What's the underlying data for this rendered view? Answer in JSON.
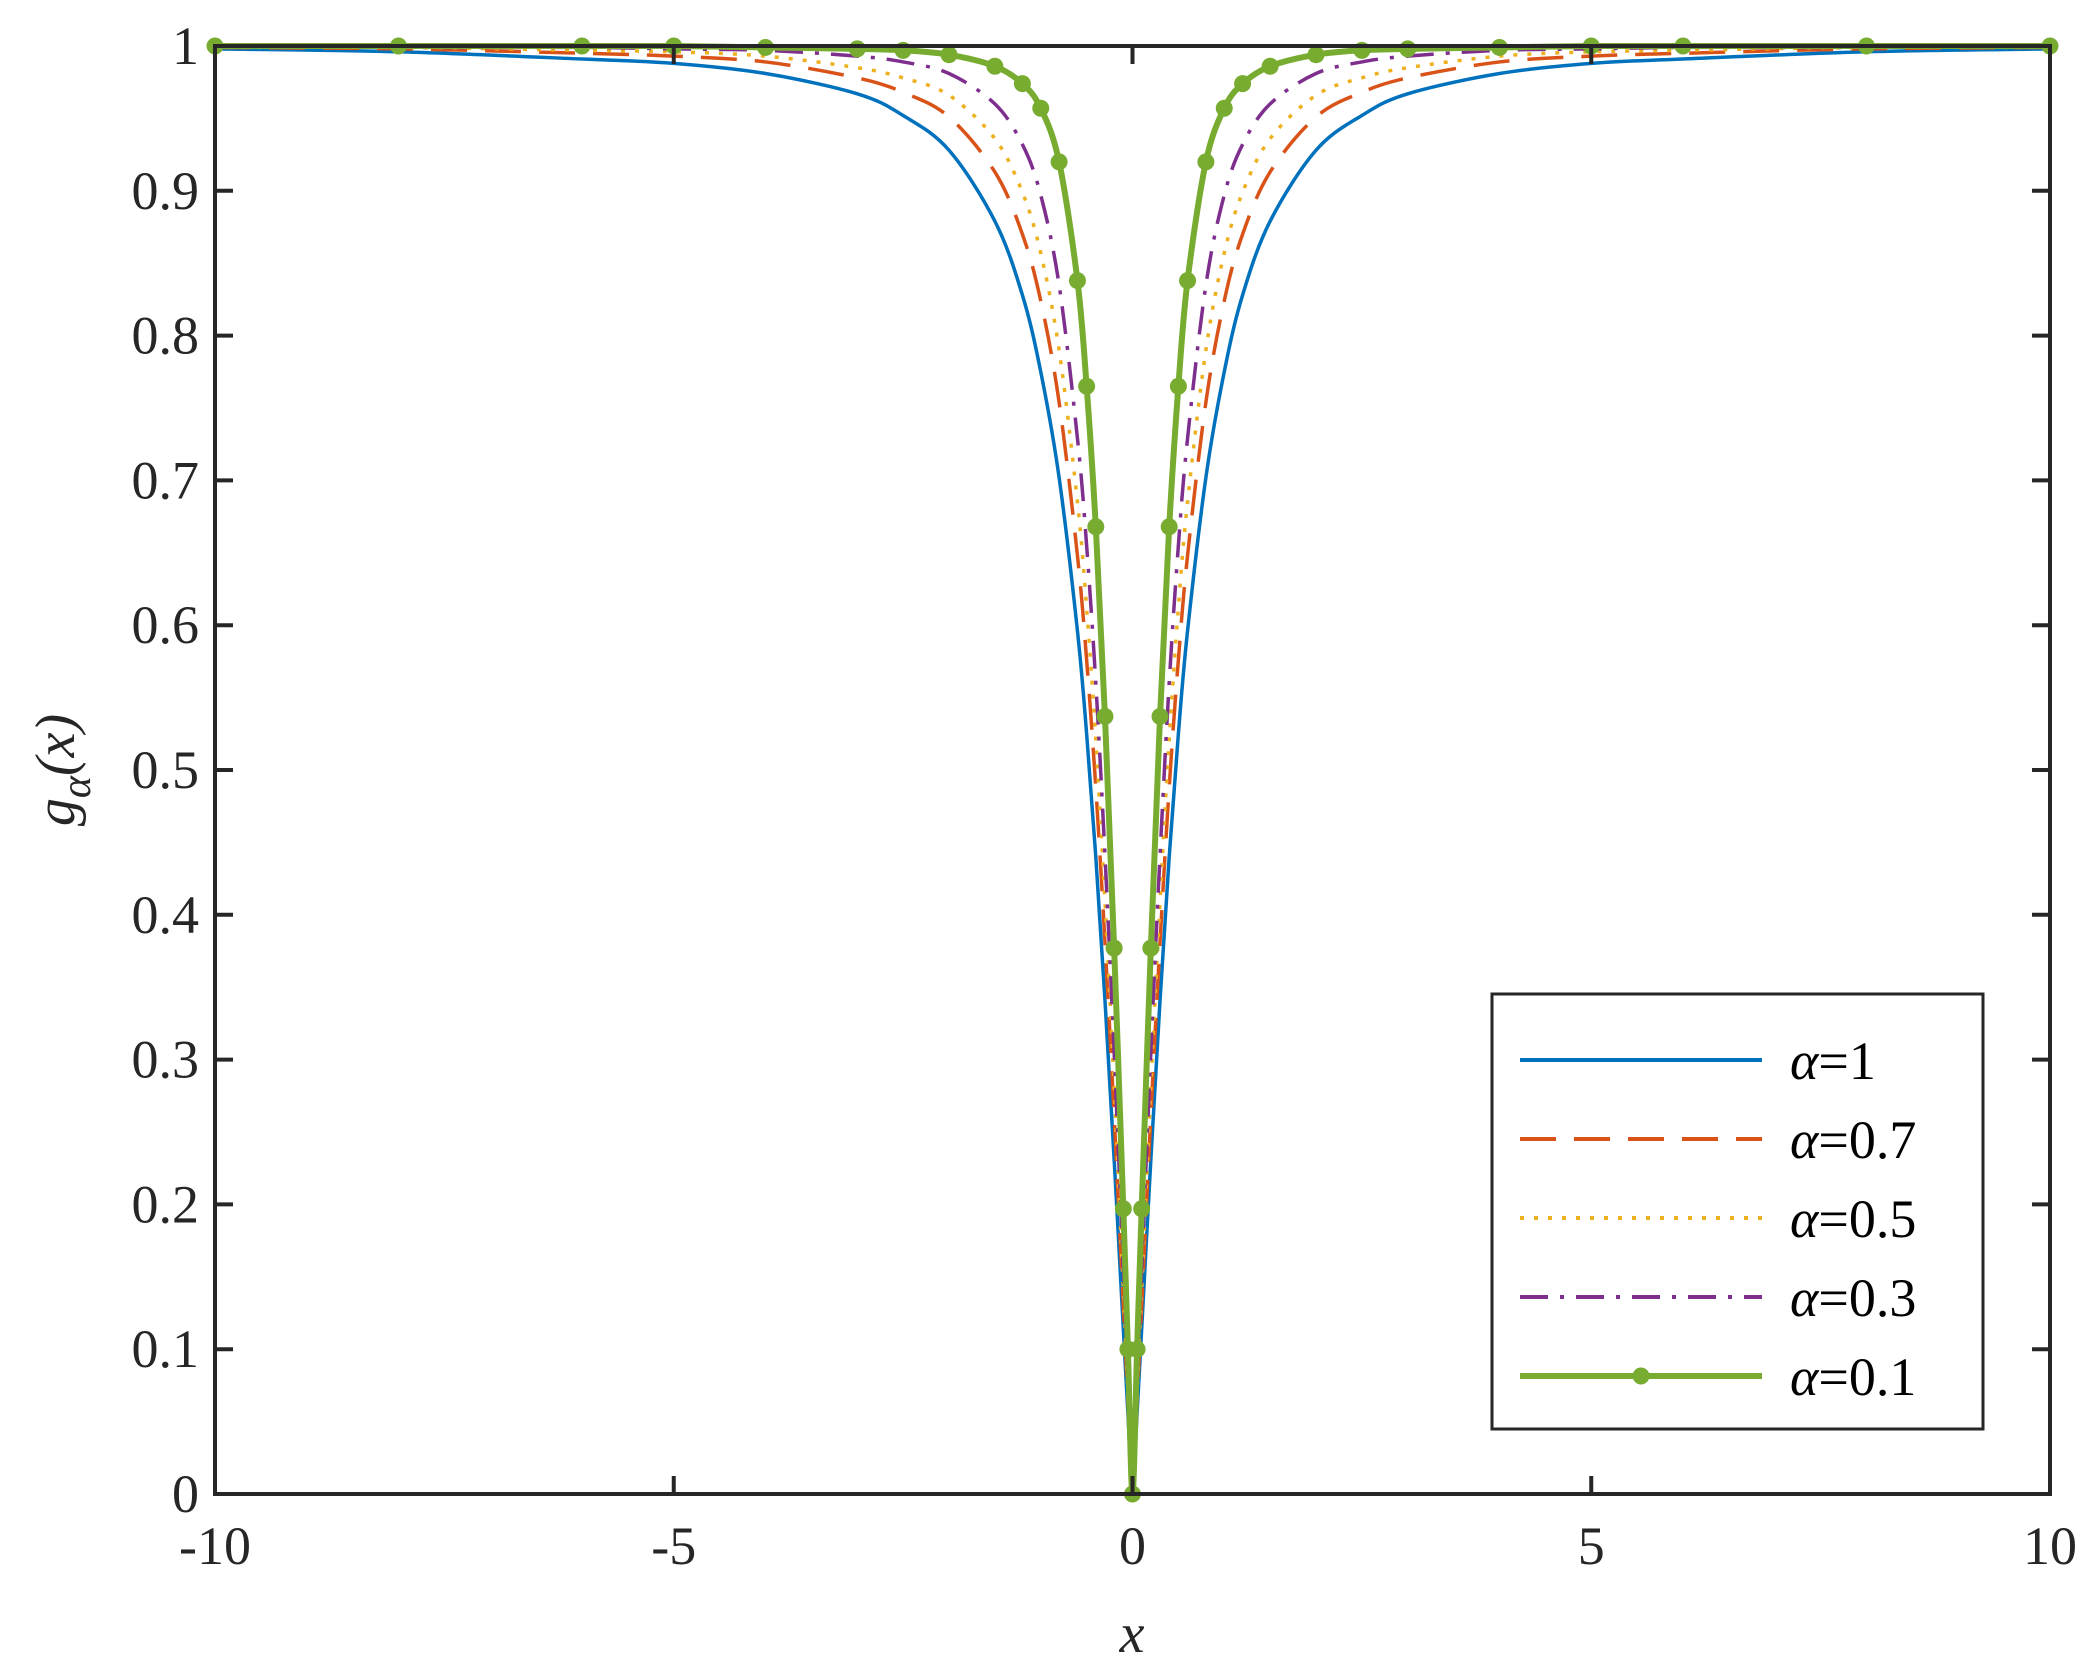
{
  "chart_data": {
    "type": "line",
    "title": "",
    "xlabel": "x",
    "ylabel": {
      "base": "g",
      "sub": "α",
      "arg": "(x)"
    },
    "xlim": [
      -10,
      10
    ],
    "ylim": [
      0,
      1
    ],
    "xticks": [
      -10,
      -5,
      0,
      5,
      10
    ],
    "xtick_labels": [
      "-10",
      "-5",
      "0",
      "5",
      "10"
    ],
    "yticks": [
      0,
      0.1,
      0.2,
      0.3,
      0.4,
      0.5,
      0.6,
      0.7,
      0.8,
      0.9,
      1
    ],
    "ytick_labels": [
      "0",
      "0.1",
      "0.2",
      "0.3",
      "0.4",
      "0.5",
      "0.6",
      "0.7",
      "0.8",
      "0.9",
      "1"
    ],
    "grid": false,
    "legend_position": "bottom-right",
    "x": [
      -10,
      -8,
      -6,
      -5,
      -4,
      -3,
      -2.5,
      -2,
      -1.5,
      -1.2,
      -1,
      -0.8,
      -0.6,
      -0.5,
      -0.4,
      -0.3,
      -0.2,
      -0.1,
      -0.05,
      0,
      0.05,
      0.1,
      0.2,
      0.3,
      0.4,
      0.5,
      0.6,
      0.8,
      1,
      1.2,
      1.5,
      2,
      2.5,
      3,
      4,
      5,
      6,
      8,
      10
    ],
    "series": [
      {
        "name": "α=1",
        "color": "#0072BD",
        "style": "solid",
        "values": [
          0.998,
          0.996,
          0.991,
          0.988,
          0.981,
          0.967,
          0.952,
          0.928,
          0.879,
          0.828,
          0.775,
          0.702,
          0.596,
          0.525,
          0.44,
          0.341,
          0.231,
          0.114,
          0.056,
          0,
          0.056,
          0.114,
          0.231,
          0.341,
          0.44,
          0.525,
          0.596,
          0.702,
          0.775,
          0.828,
          0.879,
          0.928,
          0.952,
          0.967,
          0.981,
          0.988,
          0.991,
          0.996,
          0.998
        ]
      },
      {
        "name": "α=0.7",
        "color": "#D95319",
        "style": "dashed",
        "values": [
          0.999,
          0.998,
          0.995,
          0.993,
          0.989,
          0.978,
          0.968,
          0.951,
          0.913,
          0.87,
          0.824,
          0.754,
          0.648,
          0.576,
          0.488,
          0.381,
          0.261,
          0.13,
          0.064,
          0,
          0.064,
          0.13,
          0.261,
          0.381,
          0.488,
          0.576,
          0.648,
          0.754,
          0.824,
          0.87,
          0.913,
          0.951,
          0.968,
          0.978,
          0.989,
          0.993,
          0.995,
          0.998,
          0.999
        ]
      },
      {
        "name": "α=0.5",
        "color": "#EDB120",
        "style": "dotted",
        "values": [
          0.999,
          0.999,
          0.997,
          0.996,
          0.993,
          0.985,
          0.978,
          0.966,
          0.936,
          0.899,
          0.857,
          0.79,
          0.685,
          0.612,
          0.521,
          0.409,
          0.281,
          0.141,
          0.07,
          0,
          0.07,
          0.141,
          0.281,
          0.409,
          0.521,
          0.612,
          0.685,
          0.79,
          0.857,
          0.899,
          0.936,
          0.966,
          0.978,
          0.985,
          0.993,
          0.996,
          0.997,
          0.999,
          0.999
        ]
      },
      {
        "name": "α=0.3",
        "color": "#7E2F8E",
        "style": "dashdot",
        "values": [
          1,
          0.999,
          0.999,
          0.998,
          0.997,
          0.993,
          0.989,
          0.981,
          0.96,
          0.932,
          0.897,
          0.835,
          0.729,
          0.655,
          0.56,
          0.441,
          0.305,
          0.155,
          0.077,
          0,
          0.077,
          0.155,
          0.305,
          0.441,
          0.56,
          0.655,
          0.729,
          0.835,
          0.897,
          0.932,
          0.96,
          0.981,
          0.989,
          0.993,
          0.997,
          0.998,
          0.999,
          0.999,
          1
        ]
      },
      {
        "name": "α=0.1",
        "color": "#77AC30",
        "style": "solid-marker",
        "values": [
          1,
          1,
          1,
          1,
          0.999,
          0.998,
          0.997,
          0.994,
          0.986,
          0.974,
          0.957,
          0.92,
          0.838,
          0.765,
          0.668,
          0.537,
          0.377,
          0.197,
          0.1,
          0,
          0.1,
          0.197,
          0.377,
          0.537,
          0.668,
          0.765,
          0.838,
          0.92,
          0.957,
          0.974,
          0.986,
          0.994,
          0.997,
          0.998,
          0.999,
          1,
          1,
          1,
          1
        ]
      }
    ]
  }
}
